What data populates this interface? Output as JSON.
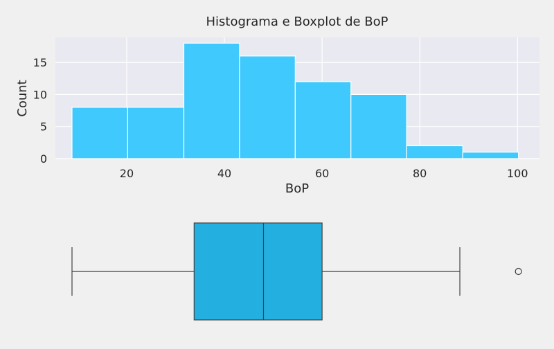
{
  "chart_data": [
    {
      "type": "histogram",
      "title": "Histograma e Boxplot de BoP",
      "xlabel": "BoP",
      "ylabel": "Count",
      "bins": [
        {
          "start": 8.8,
          "end": 20.2,
          "count": 8
        },
        {
          "start": 20.2,
          "end": 31.7,
          "count": 8
        },
        {
          "start": 31.7,
          "end": 43.1,
          "count": 18
        },
        {
          "start": 43.1,
          "end": 54.5,
          "count": 16
        },
        {
          "start": 54.5,
          "end": 65.9,
          "count": 12
        },
        {
          "start": 65.9,
          "end": 77.3,
          "count": 10
        },
        {
          "start": 77.3,
          "end": 88.8,
          "count": 2
        },
        {
          "start": 88.8,
          "end": 100.2,
          "count": 1
        }
      ],
      "xlim": [
        5.4,
        104.5
      ],
      "ylim": [
        0,
        18.9
      ],
      "xticks": [
        20,
        40,
        60,
        80,
        100
      ],
      "yticks": [
        0,
        5,
        10,
        15
      ],
      "grid": true,
      "colors": {
        "bar": "#3fc9fd",
        "background": "#e9e9f1",
        "grid": "#ffffff"
      }
    },
    {
      "type": "boxplot",
      "xlim": [
        5.4,
        104.5
      ],
      "whisker_low": 8.8,
      "q1": 33.8,
      "median": 48.0,
      "q3": 60.0,
      "whisker_high": 88.2,
      "outliers": [
        100.2
      ],
      "colors": {
        "box": "#23b0e0",
        "line": "#3f3f3f"
      }
    }
  ]
}
